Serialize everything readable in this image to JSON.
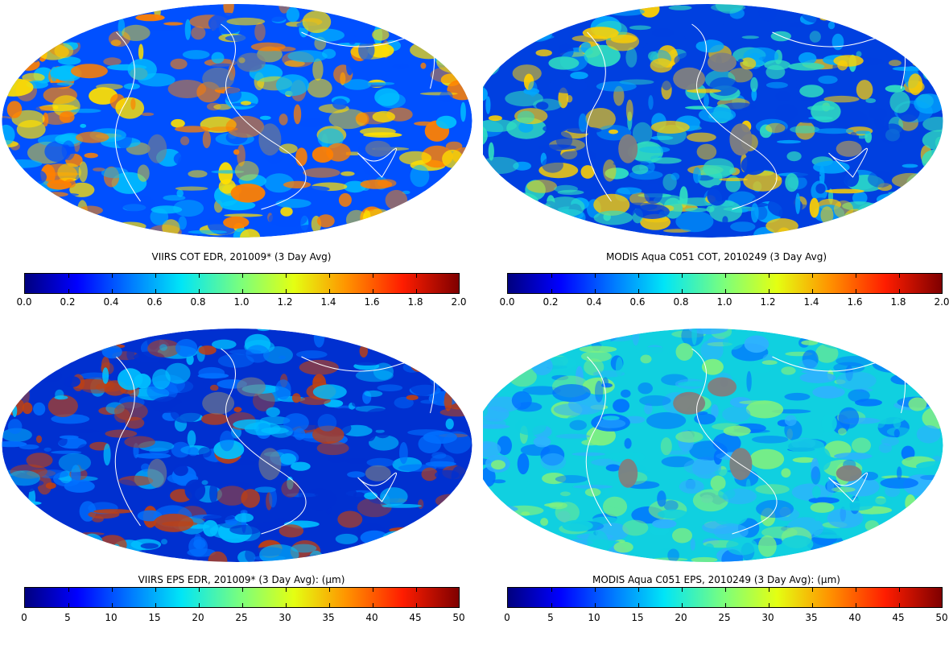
{
  "panels": [
    {
      "id": "viirs-cot",
      "title": "VIIRS COT EDR, 201009* (3 Day Avg)",
      "ticks": [
        "0.0",
        "0.2",
        "0.4",
        "0.6",
        "0.8",
        "1.0",
        "1.2",
        "1.4",
        "1.6",
        "1.8",
        "2.0"
      ],
      "colormap": "jet",
      "dominant_colors": [
        "#0050ff",
        "#ffe000",
        "#ff8000",
        "#00c0ff"
      ]
    },
    {
      "id": "modis-cot",
      "title": "MODIS Aqua C051 COT, 2010249 (3 Day Avg)",
      "ticks": [
        "0.0",
        "0.2",
        "0.4",
        "0.6",
        "0.8",
        "1.0",
        "1.2",
        "1.4",
        "1.6",
        "1.8",
        "2.0"
      ],
      "colormap": "jet",
      "dominant_colors": [
        "#0040e0",
        "#00a8ff",
        "#30e0c0",
        "#ffd000"
      ]
    },
    {
      "id": "viirs-eps",
      "title": "VIIRS EPS EDR, 201009* (3 Day Avg): (μm)",
      "ticks": [
        "0",
        "5",
        "10",
        "15",
        "20",
        "25",
        "30",
        "35",
        "40",
        "45",
        "50"
      ],
      "colormap": "jet",
      "dominant_colors": [
        "#0030d0",
        "#0070ff",
        "#00c0ff",
        "#c04010"
      ]
    },
    {
      "id": "modis-eps",
      "title": "MODIS Aqua C051 EPS, 2010249 (3 Day Avg): (μm)",
      "ticks": [
        "0",
        "5",
        "10",
        "15",
        "20",
        "25",
        "30",
        "35",
        "40",
        "45",
        "50"
      ],
      "colormap": "jet",
      "dominant_colors": [
        "#10d0e0",
        "#30b0ff",
        "#80f080",
        "#0070ff"
      ]
    }
  ],
  "land_mask_color": "#808080",
  "coastline_color": "#ffffff"
}
